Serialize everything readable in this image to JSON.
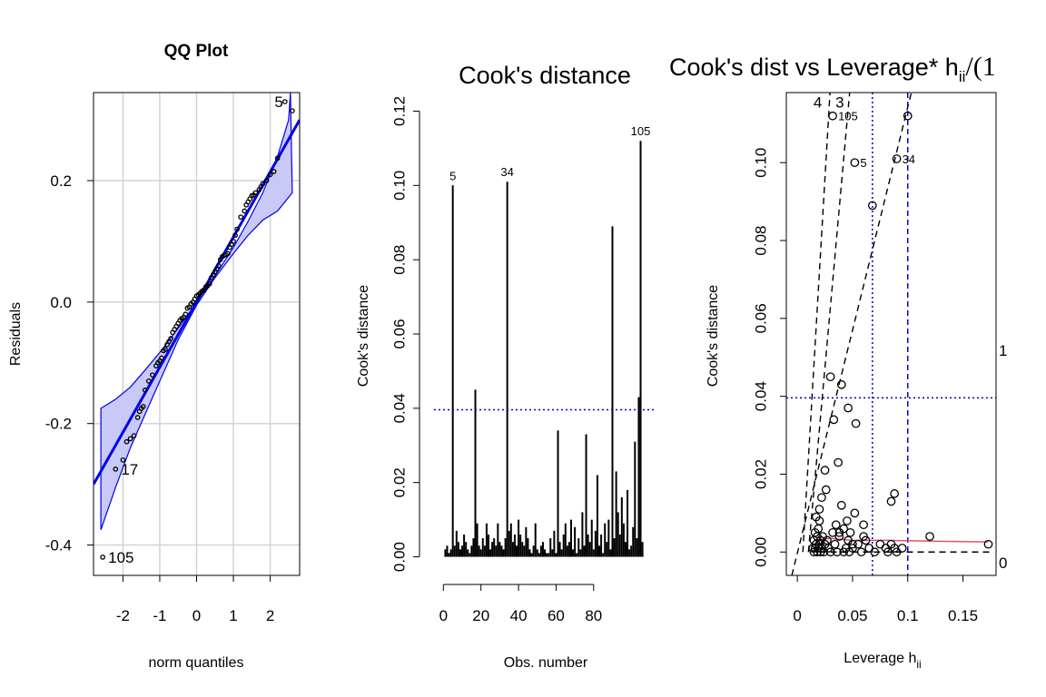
{
  "chart_data": [
    {
      "type": "scatter",
      "title": "QQ Plot",
      "xlabel": "norm quantiles",
      "ylabel": "Residuals",
      "xlim": [
        -2.8,
        2.8
      ],
      "ylim": [
        -0.45,
        0.345
      ],
      "xticks": [
        -2,
        -1,
        0,
        1,
        2
      ],
      "yticks": [
        -0.4,
        -0.2,
        0.0,
        0.2
      ],
      "ytick_labels": [
        "-0.4",
        "-0.2",
        "0.0",
        "0.2"
      ],
      "grid": true,
      "line_color": "#0000ee",
      "band_color": "#c9c9f7",
      "reference_line": [
        [
          -2.8,
          -0.3
        ],
        [
          2.8,
          0.3
        ]
      ],
      "band_upper": [
        [
          -2.6,
          -0.175
        ],
        [
          -2.2,
          -0.16
        ],
        [
          -1.8,
          -0.14
        ],
        [
          -1.4,
          -0.112
        ],
        [
          -1,
          -0.083
        ],
        [
          -0.5,
          -0.043
        ],
        [
          0,
          0
        ],
        [
          0.5,
          0.043
        ],
        [
          1,
          0.09
        ],
        [
          1.4,
          0.133
        ],
        [
          1.8,
          0.18
        ],
        [
          2.2,
          0.24
        ],
        [
          2.5,
          0.3
        ],
        [
          2.55,
          0.345
        ]
      ],
      "band_lower": [
        [
          -2.6,
          -0.375
        ],
        [
          -2.2,
          -0.305
        ],
        [
          -1.8,
          -0.24
        ],
        [
          -1.4,
          -0.185
        ],
        [
          -1,
          -0.13
        ],
        [
          -0.5,
          -0.062
        ],
        [
          0,
          -0.005
        ],
        [
          0.5,
          0.04
        ],
        [
          1,
          0.08
        ],
        [
          1.4,
          0.11
        ],
        [
          1.8,
          0.135
        ],
        [
          2.2,
          0.15
        ],
        [
          2.6,
          0.18
        ]
      ],
      "points": {
        "x": [
          -2.55,
          -2.2,
          -2.0,
          -1.9,
          -1.8,
          -1.7,
          -1.6,
          -1.55,
          -1.5,
          -1.45,
          -1.4,
          -1.3,
          -1.2,
          -1.1,
          -1.05,
          -1.0,
          -0.95,
          -0.9,
          -0.85,
          -0.8,
          -0.75,
          -0.7,
          -0.65,
          -0.6,
          -0.55,
          -0.5,
          -0.45,
          -0.4,
          -0.35,
          -0.3,
          -0.25,
          -0.2,
          -0.15,
          -0.1,
          -0.05,
          0.0,
          0.05,
          0.1,
          0.15,
          0.2,
          0.25,
          0.3,
          0.35,
          0.4,
          0.45,
          0.5,
          0.55,
          0.6,
          0.65,
          0.7,
          0.75,
          0.8,
          0.85,
          0.9,
          0.95,
          1.0,
          1.05,
          1.1,
          1.2,
          1.3,
          1.35,
          1.4,
          1.45,
          1.5,
          1.55,
          1.6,
          1.7,
          1.75,
          1.8,
          1.9,
          2.0,
          2.1,
          2.2,
          2.4,
          2.6
        ],
        "y": [
          -0.42,
          -0.275,
          -0.26,
          -0.23,
          -0.225,
          -0.22,
          -0.19,
          -0.18,
          -0.175,
          -0.172,
          -0.145,
          -0.13,
          -0.12,
          -0.105,
          -0.1,
          -0.097,
          -0.092,
          -0.08,
          -0.078,
          -0.07,
          -0.065,
          -0.06,
          -0.05,
          -0.045,
          -0.04,
          -0.035,
          -0.03,
          -0.027,
          -0.025,
          -0.02,
          -0.01,
          -0.008,
          -0.003,
          0.0,
          0.005,
          0.01,
          0.012,
          0.015,
          0.018,
          0.02,
          0.025,
          0.027,
          0.03,
          0.04,
          0.045,
          0.05,
          0.055,
          0.06,
          0.07,
          0.075,
          0.077,
          0.078,
          0.08,
          0.09,
          0.095,
          0.1,
          0.11,
          0.12,
          0.14,
          0.15,
          0.16,
          0.165,
          0.17,
          0.175,
          0.176,
          0.18,
          0.185,
          0.19,
          0.195,
          0.2,
          0.21,
          0.215,
          0.237,
          0.33,
          0.315
        ]
      },
      "point_labels": [
        {
          "text": "5",
          "x": 2.4,
          "y": 0.33
        },
        {
          "text": "17",
          "x": -2.2,
          "y": -0.275
        },
        {
          "text": "105",
          "x": -2.55,
          "y": -0.42
        }
      ]
    },
    {
      "type": "bar",
      "title": "Cook's distance",
      "xlabel": "Obs. number",
      "ylabel": "Cook's distance",
      "xlim": [
        -5,
        112
      ],
      "ylim": [
        -0.005,
        0.125
      ],
      "xticks": [
        0,
        20,
        40,
        60,
        80
      ],
      "yticks": [
        0.0,
        0.02,
        0.04,
        0.06,
        0.08,
        0.1,
        0.12
      ],
      "ytick_labels": [
        "0.00",
        "0.02",
        "0.04",
        "0.06",
        "0.08",
        "0.10",
        "0.12"
      ],
      "threshold": 0.0396,
      "threshold_color": "#0000cc",
      "values": [
        0.002,
        0.003,
        0.001,
        0.002,
        0.1,
        0.003,
        0.007,
        0.004,
        0.002,
        0.003,
        0.006,
        0.004,
        0.002,
        0.001,
        0.003,
        0.005,
        0.045,
        0.009,
        0.003,
        0.002,
        0.005,
        0.003,
        0.009,
        0.006,
        0.002,
        0.004,
        0.005,
        0.003,
        0.009,
        0.004,
        0.003,
        0.002,
        0.005,
        0.101,
        0.007,
        0.009,
        0.004,
        0.006,
        0.003,
        0.01,
        0.006,
        0.004,
        0.003,
        0.008,
        0.005,
        0.002,
        0.001,
        0.003,
        0.009,
        0.002,
        0.001,
        0.003,
        0.004,
        0.002,
        0.001,
        0.001,
        0.005,
        0.002,
        0.007,
        0.001,
        0.034,
        0.004,
        0.002,
        0.006,
        0.009,
        0.003,
        0.004,
        0.01,
        0.002,
        0.008,
        0.001,
        0.005,
        0.002,
        0.012,
        0.003,
        0.033,
        0.006,
        0.004,
        0.01,
        0.002,
        0.007,
        0.022,
        0.003,
        0.006,
        0.001,
        0.009,
        0.004,
        0.01,
        0.002,
        0.089,
        0.005,
        0.023,
        0.012,
        0.006,
        0.016,
        0.009,
        0.004,
        0.018,
        0.002,
        0.003,
        0.008,
        0.031,
        0.005,
        0.043,
        0.112,
        0.004
      ],
      "bar_labels": [
        {
          "text": "5",
          "x": 5,
          "y": 0.1
        },
        {
          "text": "34",
          "x": 34,
          "y": 0.101
        },
        {
          "text": "105",
          "x": 105,
          "y": 0.112
        }
      ]
    },
    {
      "type": "scatter",
      "title": "Cook's dist vs Leverage* h",
      "title_subscript": "ii",
      "title_tail": "/(1",
      "xlabel": "Leverage  h",
      "xlabel_subscript": "ii",
      "ylabel": "Cook's distance",
      "xlim": [
        -0.01,
        0.18
      ],
      "ylim": [
        -0.006,
        0.118
      ],
      "xticks": [
        0,
        0.05,
        0.1,
        0.15
      ],
      "xtick_labels": [
        "0",
        "0.05",
        "0.1",
        "0.15"
      ],
      "yticks": [
        0.0,
        0.02,
        0.04,
        0.06,
        0.08,
        0.1
      ],
      "ytick_labels": [
        "0.00",
        "0.02",
        "0.04",
        "0.06",
        "0.08",
        "0.10"
      ],
      "threshold_y": 0.0396,
      "threshold_x": [
        0.068,
        0.1
      ],
      "threshold_color": "#0000cc",
      "smooth_color": "#df536b",
      "smooth_line": [
        [
          0.015,
          0.003
        ],
        [
          0.03,
          0.0035
        ],
        [
          0.05,
          0.003
        ],
        [
          0.08,
          0.003
        ],
        [
          0.12,
          0.0028
        ],
        [
          0.173,
          0.0026
        ]
      ],
      "contour_labels": [
        {
          "text": "4",
          "x": 0.025,
          "y": 0.1155
        },
        {
          "text": "3",
          "x": 0.045,
          "y": 0.1155
        }
      ],
      "margin_labels": [
        "1",
        "0"
      ],
      "contour_lines": [
        [
          [
            0.005,
            0.0
          ],
          [
            0.03,
            0.12
          ]
        ],
        [
          [
            0.01,
            0.0
          ],
          [
            0.048,
            0.12
          ]
        ],
        [
          [
            -0.005,
            -0.006
          ],
          [
            0.105,
            0.12
          ]
        ],
        [
          [
            0.02,
            0.0
          ],
          [
            0.178,
            0.0
          ]
        ]
      ],
      "points": {
        "x": [
          0.014,
          0.015,
          0.015,
          0.016,
          0.016,
          0.017,
          0.017,
          0.018,
          0.018,
          0.019,
          0.019,
          0.02,
          0.02,
          0.021,
          0.021,
          0.022,
          0.022,
          0.023,
          0.024,
          0.025,
          0.026,
          0.027,
          0.028,
          0.03,
          0.032,
          0.034,
          0.035,
          0.036,
          0.038,
          0.04,
          0.042,
          0.044,
          0.045,
          0.046,
          0.047,
          0.048,
          0.05,
          0.052,
          0.055,
          0.058,
          0.06,
          0.062,
          0.065,
          0.07,
          0.075,
          0.08,
          0.082,
          0.085,
          0.088,
          0.09,
          0.02,
          0.025,
          0.03,
          0.033,
          0.037,
          0.038,
          0.04,
          0.046,
          0.05,
          0.053,
          0.06,
          0.068,
          0.085,
          0.088,
          0.12,
          0.173,
          0.1,
          0.032,
          0.052,
          0.09,
          0.095,
          0.042
        ],
        "y": [
          0.001,
          0.003,
          0.0,
          0.005,
          0.001,
          0.002,
          0.009,
          0.0,
          0.004,
          0.001,
          0.006,
          0.002,
          0.011,
          0.0,
          0.003,
          0.001,
          0.014,
          0.004,
          0.0,
          0.002,
          0.016,
          0.003,
          0.001,
          0.0,
          0.005,
          0.002,
          0.007,
          0.0,
          0.004,
          0.012,
          0.006,
          0.001,
          0.008,
          0.003,
          0.0,
          0.005,
          0.001,
          0.01,
          0.002,
          0.0,
          0.004,
          0.003,
          0.001,
          0.0,
          0.002,
          0.001,
          0.0,
          0.002,
          0.001,
          0.0,
          0.008,
          0.021,
          0.045,
          0.034,
          0.023,
          0.005,
          0.043,
          0.037,
          0.002,
          0.033,
          0.007,
          0.089,
          0.013,
          0.015,
          0.004,
          0.002,
          0.112,
          0.112,
          0.1,
          0.101,
          0.001,
          0.0
        ],
        "highlight_labels": [
          {
            "text": "105",
            "x": 0.032,
            "y": 0.112
          },
          {
            "text": "5",
            "x": 0.052,
            "y": 0.1
          },
          {
            "text": "34",
            "x": 0.09,
            "y": 0.101
          }
        ]
      }
    }
  ]
}
